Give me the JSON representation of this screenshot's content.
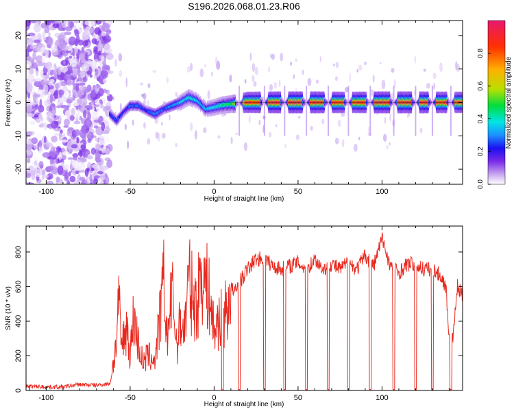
{
  "title": "S196.2026.068.01.23.R06",
  "chart_data": [
    {
      "type": "heatmap",
      "xlabel": "Height of straight line (km)",
      "ylabel": "Frequency (Hz)",
      "xlim": [
        -112,
        148
      ],
      "ylim": [
        -24.5,
        24.5
      ],
      "xticks": [
        -100,
        -50,
        0,
        50,
        100
      ],
      "yticks": [
        -20,
        -10,
        0,
        10,
        20
      ],
      "colorbar": {
        "label": "Normalized spectral amplitude",
        "range": [
          0.0,
          1.0
        ],
        "ticks": [
          0.0,
          0.2,
          0.4,
          0.6,
          0.8
        ],
        "colormap": [
          "#ffffff",
          "#c9a8f0",
          "#7a2be8",
          "#1a10f0",
          "#1e90ff",
          "#00e5e5",
          "#00dd40",
          "#b8e000",
          "#ffb000",
          "#ff3000",
          "#e8186e"
        ]
      },
      "noise_region": {
        "x_start": -112,
        "x_end": -62,
        "amplitude_range": [
          0.0,
          0.2
        ]
      },
      "ridge": {
        "x": [
          -62,
          -58,
          -54,
          -50,
          -45,
          -40,
          -35,
          -30,
          -25,
          -20,
          -15,
          -10,
          -5,
          0,
          5,
          10,
          20,
          40,
          60,
          80,
          100,
          120,
          148
        ],
        "freq_hz": [
          -3.5,
          -5.5,
          -3.0,
          -1.0,
          -1.0,
          -2.5,
          -3.5,
          -2.0,
          -1.0,
          0.0,
          1.5,
          0.5,
          -2.0,
          -1.5,
          -0.8,
          -0.5,
          0.0,
          0.0,
          0.0,
          0.0,
          0.0,
          0.0,
          0.0
        ],
        "peak_amplitude": [
          0.3,
          0.35,
          0.3,
          0.35,
          0.35,
          0.3,
          0.4,
          0.35,
          0.4,
          0.45,
          0.5,
          0.45,
          0.45,
          0.5,
          0.55,
          0.6,
          0.9,
          0.95,
          0.95,
          0.9,
          0.95,
          0.95,
          0.9
        ]
      },
      "dropouts_x": [
        15,
        30,
        42,
        55,
        68,
        80,
        93,
        107,
        120,
        130,
        141
      ]
    },
    {
      "type": "line",
      "xlabel": "Height of straight line (km)",
      "ylabel": "SNR (10 * v/v)",
      "xlim": [
        -112,
        148
      ],
      "ylim": [
        0,
        950
      ],
      "xticks": [
        -100,
        -50,
        0,
        50,
        100
      ],
      "yticks": [
        0,
        200,
        400,
        600,
        800
      ],
      "color": "#e8281e",
      "series": [
        {
          "name": "SNR",
          "x": [
            -112,
            -100,
            -90,
            -80,
            -70,
            -62,
            -58,
            -57,
            -55,
            -52,
            -50,
            -48,
            -45,
            -42,
            -40,
            -35,
            -30,
            -28,
            -25,
            -22,
            -20,
            -18,
            -15,
            -12,
            -10,
            -8,
            -5,
            -2,
            0,
            3,
            5,
            8,
            10,
            12,
            15,
            20,
            25,
            30,
            35,
            40,
            45,
            50,
            55,
            60,
            65,
            70,
            75,
            80,
            85,
            90,
            95,
            100,
            105,
            110,
            115,
            120,
            125,
            130,
            135,
            138,
            140,
            142,
            145,
            148
          ],
          "y": [
            25,
            20,
            20,
            35,
            30,
            40,
            280,
            520,
            250,
            380,
            200,
            430,
            260,
            150,
            200,
            180,
            620,
            300,
            560,
            250,
            420,
            330,
            640,
            500,
            480,
            700,
            620,
            500,
            330,
            420,
            400,
            480,
            600,
            560,
            620,
            700,
            760,
            760,
            720,
            700,
            720,
            740,
            700,
            760,
            700,
            730,
            700,
            740,
            700,
            780,
            720,
            880,
            720,
            680,
            730,
            730,
            700,
            700,
            660,
            600,
            320,
            290,
            600,
            540
          ]
        }
      ],
      "dropouts_x": [
        5,
        15,
        30,
        42,
        55,
        68,
        80,
        93,
        107,
        120,
        130,
        141
      ]
    }
  ]
}
